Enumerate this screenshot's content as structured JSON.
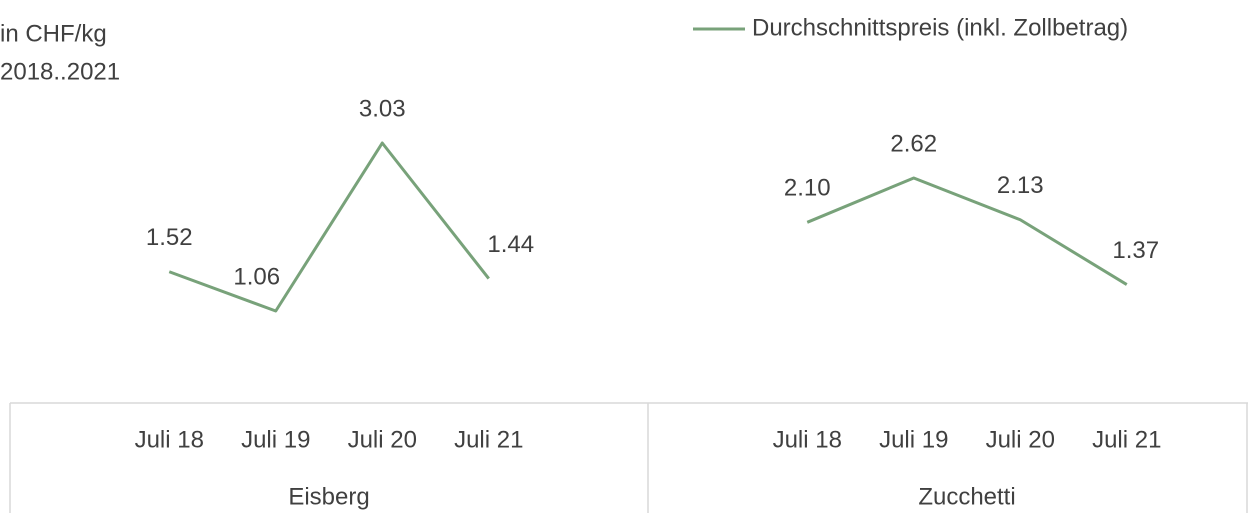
{
  "chart_data": {
    "type": "line",
    "y_axis_label": "in CHF/kg",
    "subtitle": "2018..2021",
    "categories": [
      "Juli 18",
      "Juli 19",
      "Juli 20",
      "Juli 21",
      "Juli 18",
      "Juli 19",
      "Juli 20",
      "Juli 21"
    ],
    "category_groups": [
      "Eisberg",
      "Zucchetti"
    ],
    "series": [
      {
        "name": "Durchschnittspreis (inkl. Zollbetrag)",
        "color": "#78a27a",
        "values": [
          1.52,
          1.06,
          3.03,
          1.44,
          2.1,
          2.62,
          2.13,
          1.37
        ],
        "value_labels": [
          "1.52",
          "1.06",
          "3.03",
          "1.44",
          "2.10",
          "2.62",
          "2.13",
          "1.37"
        ]
      }
    ],
    "legend": "top-right"
  }
}
